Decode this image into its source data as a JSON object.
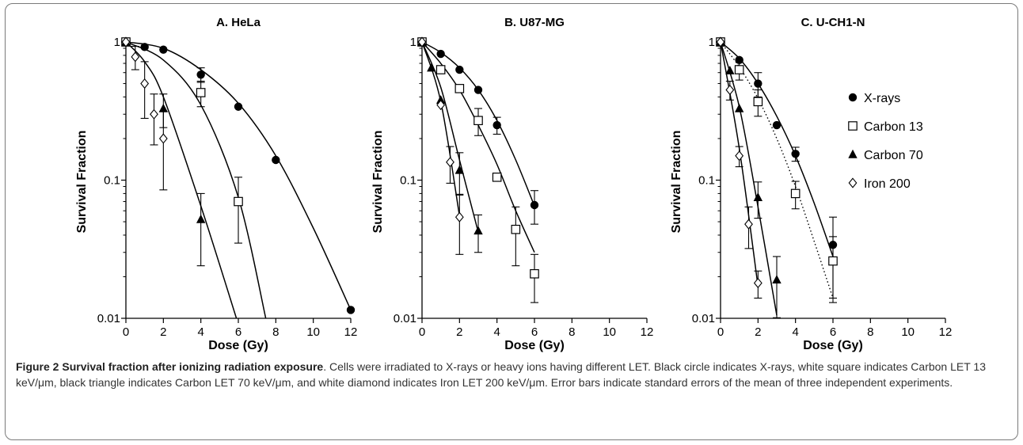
{
  "chart_data": [
    {
      "type": "scatter",
      "title": "A. HeLa",
      "xlabel": "Dose (Gy)",
      "ylabel": "Survival Fraction",
      "xlim": [
        0,
        12
      ],
      "ylim": [
        0.01,
        1
      ],
      "yscale": "log",
      "x_ticks": [
        "0",
        "2",
        "4",
        "6",
        "8",
        "10",
        "12"
      ],
      "y_ticks": [
        "0.01",
        "0.1",
        "1"
      ],
      "series": [
        {
          "key": "xrays",
          "x": [
            0,
            1,
            2,
            4,
            6,
            8,
            12
          ],
          "y": [
            1,
            0.92,
            0.88,
            0.58,
            0.34,
            0.14,
            0.0115
          ],
          "err": [
            0,
            0,
            0,
            0.07,
            0,
            0,
            0
          ],
          "curve": [
            [
              0,
              1
            ],
            [
              2,
              0.9
            ],
            [
              4,
              0.63
            ],
            [
              6,
              0.36
            ],
            [
              8,
              0.15
            ],
            [
              10,
              0.045
            ],
            [
              12,
              0.0115
            ]
          ]
        },
        {
          "key": "c13",
          "x": [
            0,
            4,
            6
          ],
          "y": [
            1,
            0.43,
            0.07
          ],
          "err": [
            0,
            0.09,
            0.035
          ],
          "curve": [
            [
              0,
              1
            ],
            [
              2,
              0.74
            ],
            [
              4,
              0.35
            ],
            [
              6,
              0.075
            ],
            [
              7.5,
              0.0095
            ]
          ]
        },
        {
          "key": "c70",
          "x": [
            0,
            2,
            4
          ],
          "y": [
            1,
            0.33,
            0.052
          ],
          "err": [
            0,
            0.09,
            0.028
          ],
          "curve": [
            [
              0,
              1
            ],
            [
              1,
              0.72
            ],
            [
              2,
              0.4
            ],
            [
              4,
              0.065
            ],
            [
              5.95,
              0.0095
            ]
          ]
        },
        {
          "key": "fe200",
          "x": [
            0,
            0.5,
            1,
            1.5,
            2
          ],
          "y": [
            1,
            0.78,
            0.5,
            0.3,
            0.2
          ],
          "err": [
            0,
            0.15,
            0.22,
            0.12,
            0.115
          ],
          "curve": []
        }
      ]
    },
    {
      "type": "scatter",
      "title": "B. U87-MG",
      "xlabel": "Dose (Gy)",
      "ylabel": "Survival Fraction",
      "xlim": [
        0,
        12
      ],
      "ylim": [
        0.01,
        1
      ],
      "yscale": "log",
      "x_ticks": [
        "0",
        "2",
        "4",
        "6",
        "8",
        "10",
        "12"
      ],
      "y_ticks": [
        "0.01",
        "0.1",
        "1"
      ],
      "series": [
        {
          "key": "xrays",
          "x": [
            0,
            1,
            2,
            3,
            4,
            6
          ],
          "y": [
            1,
            0.82,
            0.63,
            0.45,
            0.25,
            0.066
          ],
          "err": [
            0,
            0,
            0,
            0,
            0.035,
            0.018
          ],
          "curve": [
            [
              0,
              1
            ],
            [
              1,
              0.84
            ],
            [
              2,
              0.65
            ],
            [
              3,
              0.45
            ],
            [
              4,
              0.27
            ],
            [
              5,
              0.14
            ],
            [
              6,
              0.065
            ]
          ]
        },
        {
          "key": "c13",
          "x": [
            0,
            1,
            2,
            3,
            4,
            5,
            6
          ],
          "y": [
            1,
            0.63,
            0.46,
            0.27,
            0.105,
            0.044,
            0.021
          ],
          "err": [
            0,
            0,
            0,
            0.06,
            0,
            0.02,
            0.008
          ],
          "curve": [
            [
              0,
              1
            ],
            [
              1,
              0.7
            ],
            [
              2,
              0.45
            ],
            [
              3,
              0.25
            ],
            [
              4,
              0.13
            ],
            [
              5,
              0.06
            ],
            [
              6,
              0.03
            ]
          ]
        },
        {
          "key": "c70",
          "x": [
            0,
            0.5,
            1,
            2,
            3
          ],
          "y": [
            1,
            0.65,
            0.38,
            0.118,
            0.043
          ],
          "err": [
            0,
            0,
            0,
            0.04,
            0.013
          ],
          "curve": [
            [
              0,
              1
            ],
            [
              1,
              0.47
            ],
            [
              2,
              0.14
            ],
            [
              3,
              0.042
            ]
          ]
        },
        {
          "key": "fe200",
          "x": [
            0,
            1,
            1.5,
            2
          ],
          "y": [
            1,
            0.35,
            0.135,
            0.054
          ],
          "err": [
            0,
            0,
            0.04,
            0.025
          ],
          "curve": [
            [
              0,
              1
            ],
            [
              1,
              0.37
            ],
            [
              2,
              0.055
            ]
          ]
        }
      ]
    },
    {
      "type": "scatter",
      "title": "C. U-CH1-N",
      "xlabel": "Dose (Gy)",
      "ylabel": "Survival Fraction",
      "xlim": [
        0,
        12
      ],
      "ylim": [
        0.01,
        1
      ],
      "yscale": "log",
      "x_ticks": [
        "0",
        "2",
        "4",
        "6",
        "8",
        "10",
        "12"
      ],
      "y_ticks": [
        "0.01",
        "0.1",
        "1"
      ],
      "legend_position": "right",
      "legend": [
        {
          "key": "xrays",
          "label": "X-rays"
        },
        {
          "key": "c13",
          "label": "Carbon 13"
        },
        {
          "key": "c70",
          "label": "Carbon 70"
        },
        {
          "key": "fe200",
          "label": "Iron 200"
        }
      ],
      "series": [
        {
          "key": "xrays",
          "x": [
            0,
            1,
            2,
            3,
            4,
            6
          ],
          "y": [
            1,
            0.74,
            0.5,
            0.25,
            0.155,
            0.034
          ],
          "err": [
            0,
            0,
            0.1,
            0,
            0.018,
            0.02
          ],
          "curve": [
            [
              0,
              1
            ],
            [
              1,
              0.76
            ],
            [
              2,
              0.5
            ],
            [
              3,
              0.29
            ],
            [
              4,
              0.15
            ],
            [
              5,
              0.068
            ],
            [
              6,
              0.028
            ]
          ]
        },
        {
          "key": "c13",
          "x": [
            0,
            1,
            2,
            4,
            6
          ],
          "y": [
            1,
            0.63,
            0.37,
            0.08,
            0.026
          ],
          "err": [
            0,
            0.1,
            0.08,
            0.018,
            0.013
          ],
          "dotted": true,
          "curve": [
            [
              0,
              1
            ],
            [
              1,
              0.66
            ],
            [
              2,
              0.39
            ],
            [
              3,
              0.2
            ],
            [
              4,
              0.09
            ],
            [
              5,
              0.036
            ],
            [
              6,
              0.014
            ]
          ]
        },
        {
          "key": "c70",
          "x": [
            0,
            0.5,
            1,
            2,
            3
          ],
          "y": [
            1,
            0.62,
            0.33,
            0.075,
            0.019
          ],
          "err": [
            0,
            0,
            0,
            0.022,
            0.009
          ],
          "curve": [
            [
              0,
              1
            ],
            [
              1,
              0.34
            ],
            [
              2,
              0.064
            ],
            [
              3,
              0.0105
            ]
          ]
        },
        {
          "key": "fe200",
          "x": [
            0,
            0.5,
            1,
            1.5,
            2
          ],
          "y": [
            1,
            0.45,
            0.15,
            0.048,
            0.018
          ],
          "err": [
            0,
            0.07,
            0.025,
            0.016,
            0.004
          ],
          "curve": [
            [
              0,
              1
            ],
            [
              1,
              0.17
            ],
            [
              2,
              0.017
            ]
          ]
        }
      ]
    }
  ],
  "caption": {
    "label": "Figure 2",
    "title": "Survival fraction after ionizing radiation exposure",
    "body": ". Cells were irradiated to X-rays or heavy ions having different LET. Black circle indicates X-rays, white square indicates Carbon LET 13 keV/μm, black triangle indicates Carbon LET 70 keV/μm, and white diamond indicates Iron LET 200 keV/μm. Error bars indicate standard errors of the mean of three independent experiments."
  },
  "colors": {
    "ink": "#000000",
    "caption_text": "#333333",
    "frame": "#7a7a7a"
  }
}
